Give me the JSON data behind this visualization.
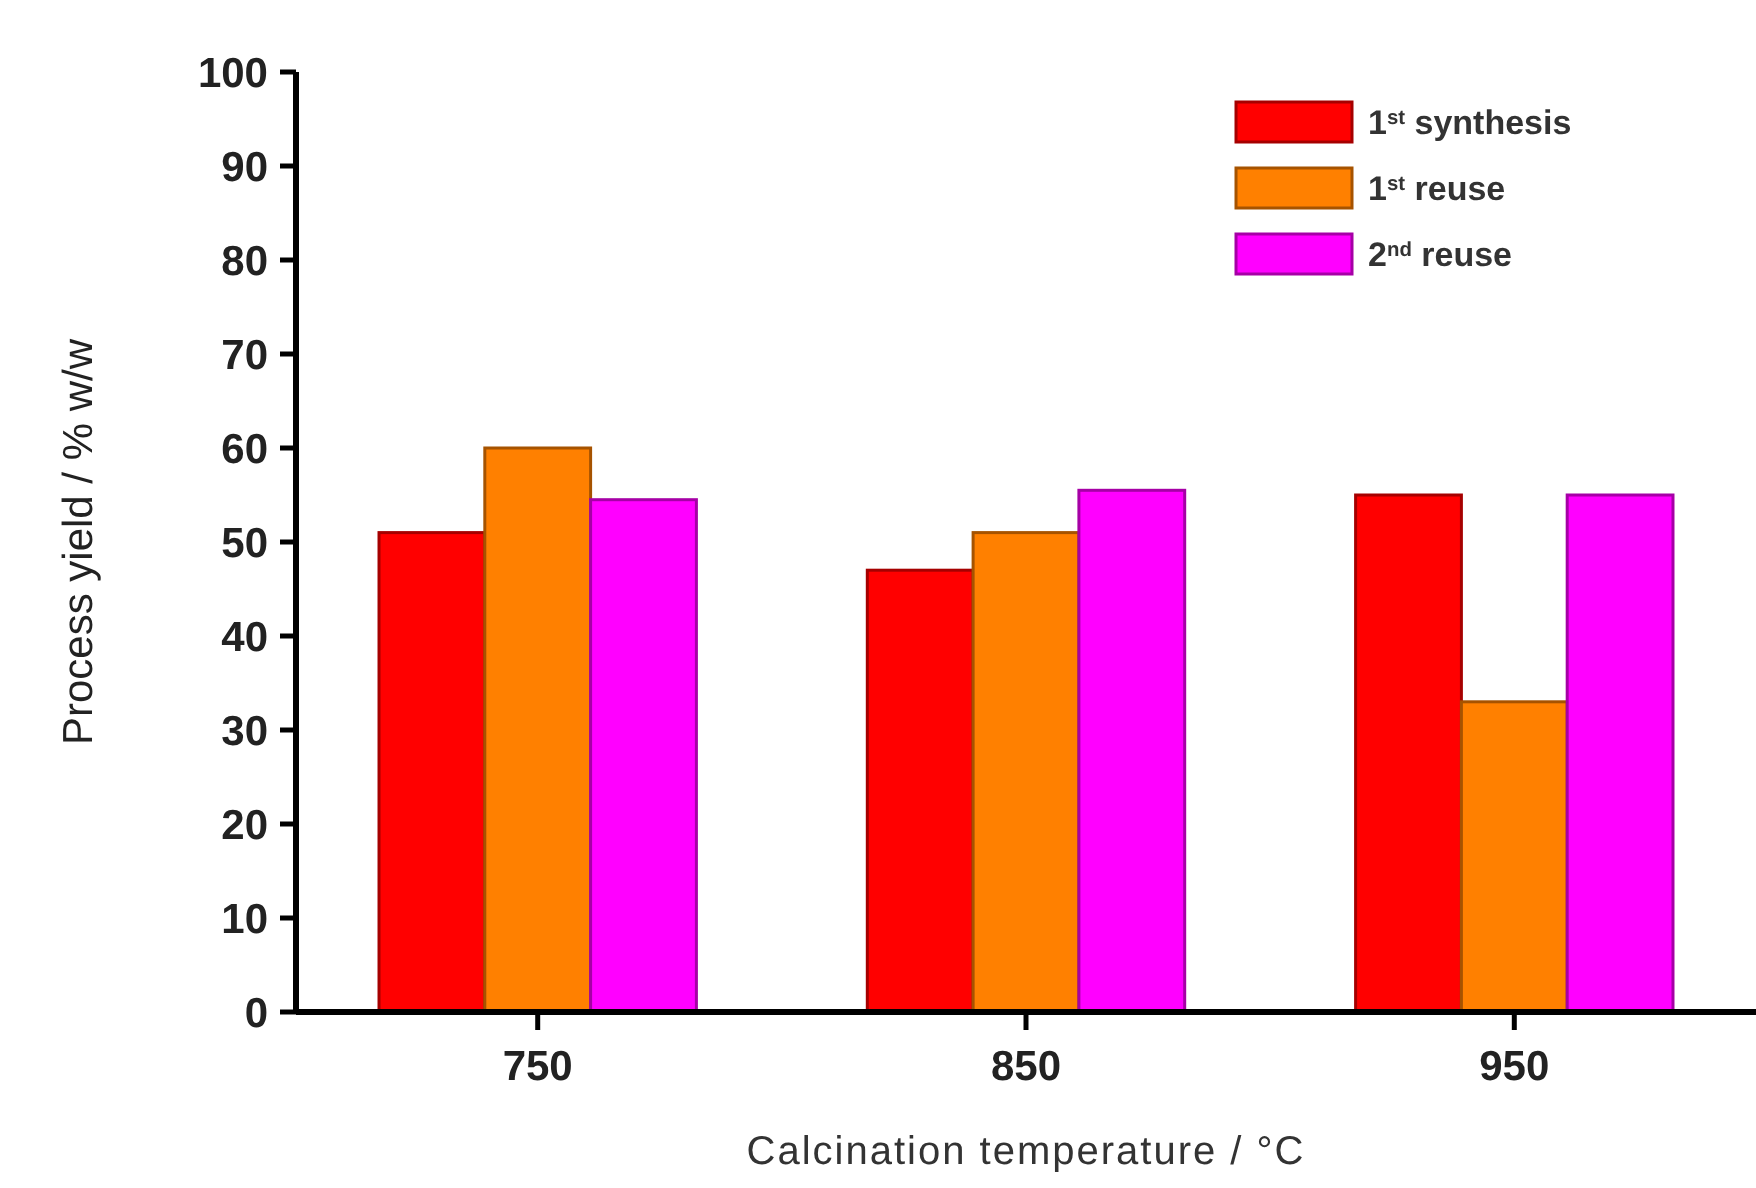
{
  "chart_data": {
    "type": "bar",
    "xlabel": "Calcination temperature / °C",
    "ylabel": "Process yield / % w/w",
    "categories": [
      "750",
      "850",
      "950"
    ],
    "series": [
      {
        "name": "1$^{st}$ synthesis",
        "color": "#ff0000",
        "values": [
          51,
          47,
          55
        ]
      },
      {
        "name": "1$^{st}$ reuse",
        "color": "#ff8000",
        "values": [
          60,
          51,
          33
        ]
      },
      {
        "name": "2$^{nd}$ reuse",
        "color": "#ff00ff",
        "values": [
          54.5,
          55.5,
          55
        ]
      }
    ],
    "ylim": [
      0,
      100
    ],
    "yticks": [
      0,
      10,
      20,
      30,
      40,
      50,
      60,
      70,
      80,
      90,
      100
    ],
    "grid": false,
    "legend": "top right"
  }
}
